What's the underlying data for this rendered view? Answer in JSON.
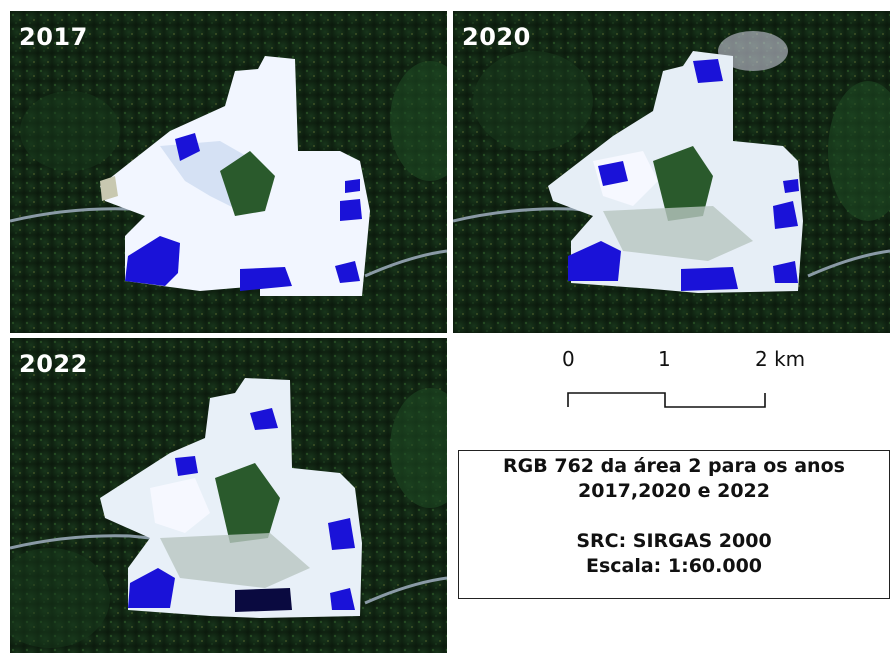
{
  "panels": [
    {
      "year": "2017"
    },
    {
      "year": "2020"
    },
    {
      "year": "2022"
    }
  ],
  "scale_bar": {
    "labels": [
      "0",
      "1",
      "2 km"
    ]
  },
  "legend": {
    "line1": "RGB 762 da área 2 para os anos",
    "line2": "2017,2020 e 2022",
    "line3": "SRC: SIRGAS 2000",
    "line4": "Escala: 1:60.000"
  },
  "colors": {
    "forest": "#0f2412",
    "forest_highlight": "#1f4a22",
    "mine_bare": "#f2f6ff",
    "mine_shade": "#c9d8f0",
    "water_pond": "#1a12d8",
    "road": "#8a9aa6",
    "frame_border": "#ffffff"
  }
}
